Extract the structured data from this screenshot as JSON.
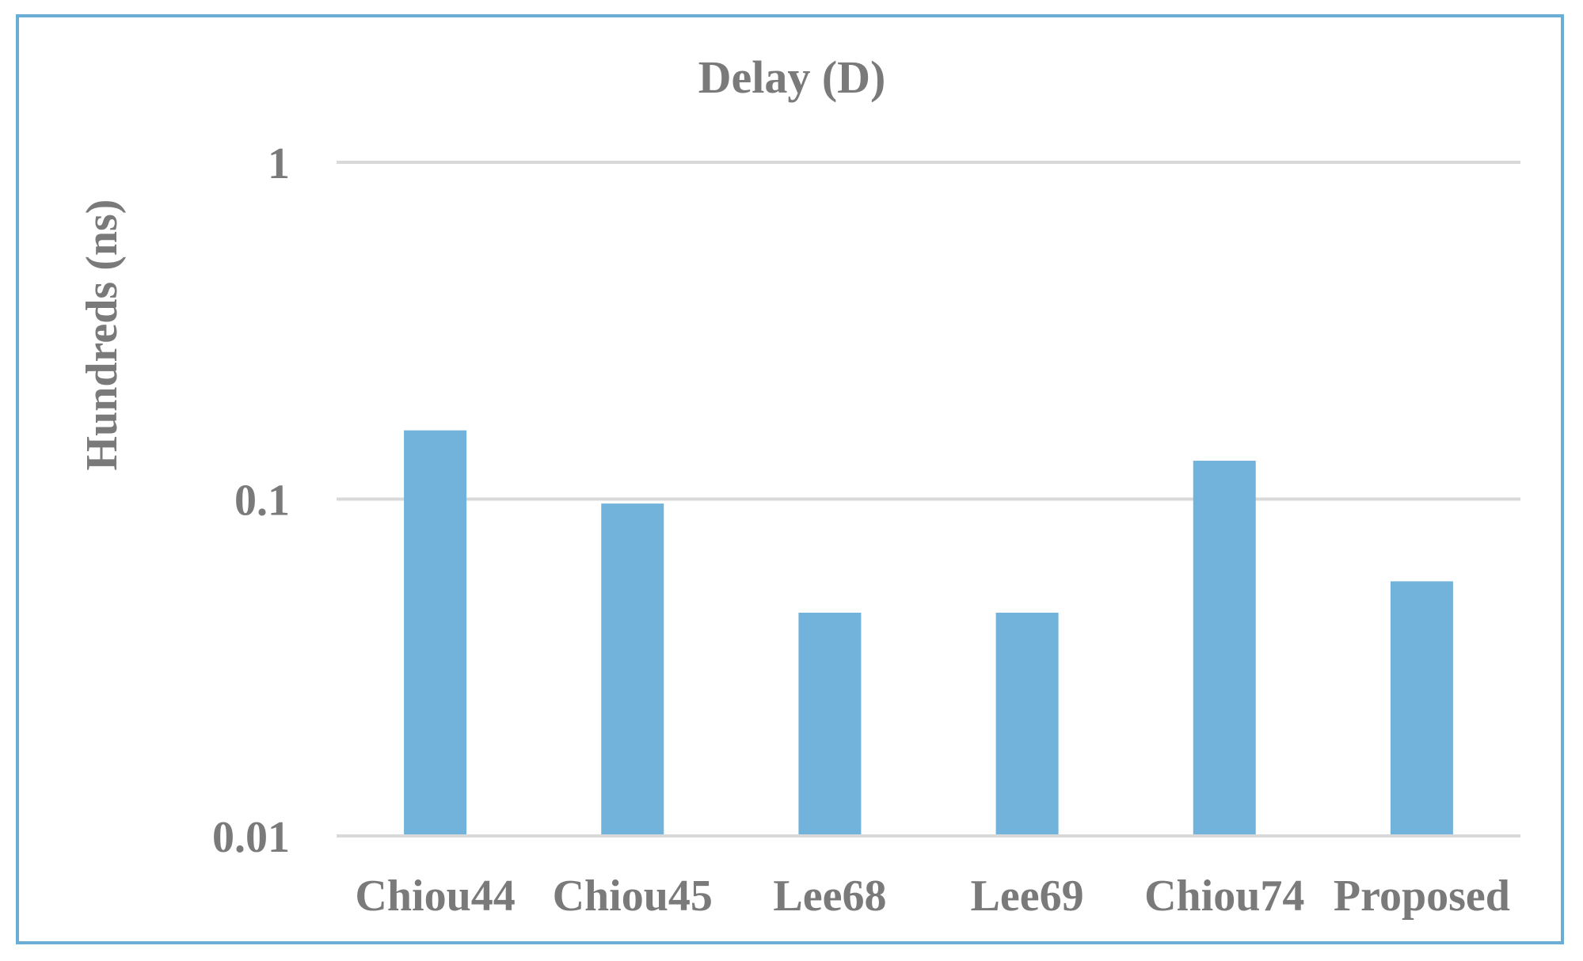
{
  "chart_data": {
    "type": "bar",
    "title": "Delay (D)",
    "xlabel": "",
    "ylabel": "Hundreds (ns)",
    "yscale": "log",
    "ylim": [
      0.01,
      1
    ],
    "yticks": [
      "0.01",
      "0.1",
      "1"
    ],
    "grid": true,
    "legend": "none",
    "categories": [
      "Chiou44",
      "Chiou45",
      "Lee68",
      "Lee69",
      "Chiou74",
      "Proposed"
    ],
    "values": [
      0.16,
      0.097,
      0.046,
      0.046,
      0.13,
      0.057
    ],
    "colors": {
      "bar": "#72b3dc",
      "text": "#7a7a7a",
      "grid": "#d9d9d9",
      "border": "#6aaed6"
    }
  }
}
